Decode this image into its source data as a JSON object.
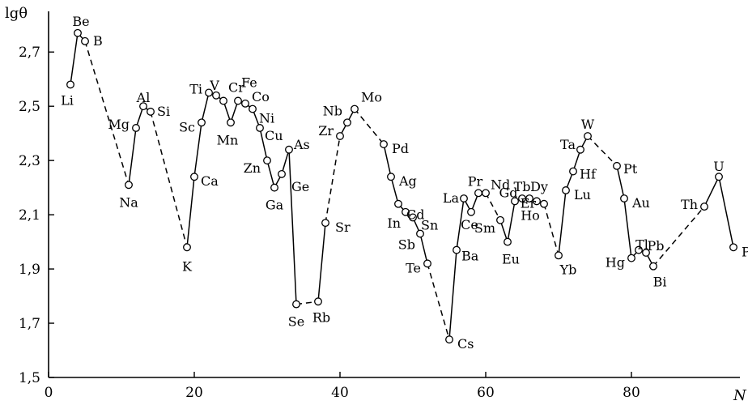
{
  "chart_data": {
    "type": "line",
    "ylabel": "lgθ",
    "xlabel": "N",
    "xlim": [
      0,
      95
    ],
    "ylim": [
      1.5,
      2.85
    ],
    "x_ticks": [
      0,
      20,
      40,
      60,
      80
    ],
    "x_tick_labels": [
      "0",
      "20",
      "40",
      "60",
      "80"
    ],
    "y_ticks": [
      1.5,
      1.7,
      1.9,
      2.1,
      2.3,
      2.5,
      2.7
    ],
    "y_tick_labels": [
      "1,5",
      "1,7",
      "1,9",
      "2,1",
      "2,3",
      "2,5",
      "2,7"
    ],
    "points": [
      {
        "label": "Li",
        "x": 3,
        "y": 2.58
      },
      {
        "label": "Be",
        "x": 4,
        "y": 2.77
      },
      {
        "label": "B",
        "x": 5,
        "y": 2.74
      },
      {
        "label": "Na",
        "x": 11,
        "y": 2.21
      },
      {
        "label": "Mg",
        "x": 12,
        "y": 2.42
      },
      {
        "label": "Al",
        "x": 13,
        "y": 2.5
      },
      {
        "label": "Si",
        "x": 14,
        "y": 2.48
      },
      {
        "label": "K",
        "x": 19,
        "y": 1.98
      },
      {
        "label": "Ca",
        "x": 20,
        "y": 2.24
      },
      {
        "label": "Sc",
        "x": 21,
        "y": 2.44
      },
      {
        "label": "Ti",
        "x": 22,
        "y": 2.55
      },
      {
        "label": "V",
        "x": 23,
        "y": 2.54
      },
      {
        "label": "Cr",
        "x": 24,
        "y": 2.52
      },
      {
        "label": "Mn",
        "x": 25,
        "y": 2.44
      },
      {
        "label": "Fe",
        "x": 26,
        "y": 2.52
      },
      {
        "label": "Co",
        "x": 27,
        "y": 2.51
      },
      {
        "label": "Ni",
        "x": 28,
        "y": 2.49
      },
      {
        "label": "Cu",
        "x": 29,
        "y": 2.42
      },
      {
        "label": "Zn",
        "x": 30,
        "y": 2.3
      },
      {
        "label": "Ga",
        "x": 31,
        "y": 2.2
      },
      {
        "label": "Ge",
        "x": 32,
        "y": 2.25
      },
      {
        "label": "As",
        "x": 33,
        "y": 2.34
      },
      {
        "label": "Se",
        "x": 34,
        "y": 1.77
      },
      {
        "label": "Rb",
        "x": 37,
        "y": 1.78
      },
      {
        "label": "Sr",
        "x": 38,
        "y": 2.07
      },
      {
        "label": "Zr",
        "x": 40,
        "y": 2.39
      },
      {
        "label": "Nb",
        "x": 41,
        "y": 2.44
      },
      {
        "label": "Mo",
        "x": 42,
        "y": 2.49
      },
      {
        "label": "Pd",
        "x": 46,
        "y": 2.36
      },
      {
        "label": "Ag",
        "x": 47,
        "y": 2.24
      },
      {
        "label": "Cd",
        "x": 48,
        "y": 2.14
      },
      {
        "label": "In",
        "x": 49,
        "y": 2.11
      },
      {
        "label": "Sn",
        "x": 50,
        "y": 2.09
      },
      {
        "label": "Sb",
        "x": 51,
        "y": 2.03
      },
      {
        "label": "Te",
        "x": 52,
        "y": 1.92
      },
      {
        "label": "Cs",
        "x": 55,
        "y": 1.64
      },
      {
        "label": "Ba",
        "x": 56,
        "y": 1.97
      },
      {
        "label": "La",
        "x": 57,
        "y": 2.16
      },
      {
        "label": "Ce",
        "x": 58,
        "y": 2.11
      },
      {
        "label": "Pr",
        "x": 59,
        "y": 2.18
      },
      {
        "label": "Nd",
        "x": 60,
        "y": 2.18
      },
      {
        "label": "Sm",
        "x": 62,
        "y": 2.08
      },
      {
        "label": "Eu",
        "x": 63,
        "y": 2.0
      },
      {
        "label": "Gd",
        "x": 64,
        "y": 2.15
      },
      {
        "label": "Tb",
        "x": 65,
        "y": 2.16
      },
      {
        "label": "Dy",
        "x": 66,
        "y": 2.16
      },
      {
        "label": "Ho",
        "x": 67,
        "y": 2.15
      },
      {
        "label": "Er",
        "x": 68,
        "y": 2.14
      },
      {
        "label": "Yb",
        "x": 70,
        "y": 1.95
      },
      {
        "label": "Lu",
        "x": 71,
        "y": 2.19
      },
      {
        "label": "Hf",
        "x": 72,
        "y": 2.26
      },
      {
        "label": "Ta",
        "x": 73,
        "y": 2.34
      },
      {
        "label": "W",
        "x": 74,
        "y": 2.39
      },
      {
        "label": "Pt",
        "x": 78,
        "y": 2.28
      },
      {
        "label": "Au",
        "x": 79,
        "y": 2.16
      },
      {
        "label": "Hg",
        "x": 80,
        "y": 1.94
      },
      {
        "label": "Tl",
        "x": 81,
        "y": 1.97
      },
      {
        "label": "Pb",
        "x": 82,
        "y": 1.96
      },
      {
        "label": "Bi",
        "x": 83,
        "y": 1.91
      },
      {
        "label": "Th",
        "x": 90,
        "y": 2.13
      },
      {
        "label": "U",
        "x": 92,
        "y": 2.24
      },
      {
        "label": "Pu",
        "x": 94,
        "y": 1.98
      }
    ],
    "segments": [
      {
        "style": "solid",
        "labels": [
          "Li",
          "Be",
          "B"
        ]
      },
      {
        "style": "dashed",
        "labels": [
          "B",
          "Na"
        ]
      },
      {
        "style": "solid",
        "labels": [
          "Na",
          "Mg",
          "Al",
          "Si"
        ]
      },
      {
        "style": "dashed",
        "labels": [
          "Si",
          "K"
        ]
      },
      {
        "style": "solid",
        "labels": [
          "K",
          "Ca",
          "Sc",
          "Ti",
          "V",
          "Cr",
          "Mn",
          "Fe",
          "Co",
          "Ni",
          "Cu",
          "Zn",
          "Ga",
          "Ge",
          "As",
          "Se"
        ]
      },
      {
        "style": "dashed",
        "labels": [
          "Se",
          "Rb"
        ]
      },
      {
        "style": "solid",
        "labels": [
          "Rb",
          "Sr"
        ]
      },
      {
        "style": "dashed",
        "labels": [
          "Sr",
          "Zr"
        ]
      },
      {
        "style": "solid",
        "labels": [
          "Zr",
          "Nb",
          "Mo"
        ]
      },
      {
        "style": "dashed",
        "labels": [
          "Mo",
          "Pd"
        ]
      },
      {
        "style": "solid",
        "labels": [
          "Pd",
          "Ag",
          "Cd",
          "In",
          "Sn",
          "Sb",
          "Te"
        ]
      },
      {
        "style": "dashed",
        "labels": [
          "Te",
          "Cs"
        ]
      },
      {
        "style": "solid",
        "labels": [
          "Cs",
          "Ba",
          "La",
          "Ce",
          "Pr",
          "Nd"
        ]
      },
      {
        "style": "dashed",
        "labels": [
          "Nd",
          "Sm"
        ]
      },
      {
        "style": "solid",
        "labels": [
          "Sm",
          "Eu",
          "Gd",
          "Tb",
          "Dy",
          "Ho",
          "Er"
        ]
      },
      {
        "style": "dashed",
        "labels": [
          "Er",
          "Yb"
        ]
      },
      {
        "style": "solid",
        "labels": [
          "Yb",
          "Lu",
          "Hf",
          "Ta",
          "W"
        ]
      },
      {
        "style": "dashed",
        "labels": [
          "W",
          "Pt"
        ]
      },
      {
        "style": "solid",
        "labels": [
          "Pt",
          "Au",
          "Hg",
          "Tl",
          "Pb",
          "Bi"
        ]
      },
      {
        "style": "dashed",
        "labels": [
          "Bi",
          "Th"
        ]
      },
      {
        "style": "solid",
        "labels": [
          "Th",
          "U",
          "Pu"
        ]
      }
    ]
  }
}
